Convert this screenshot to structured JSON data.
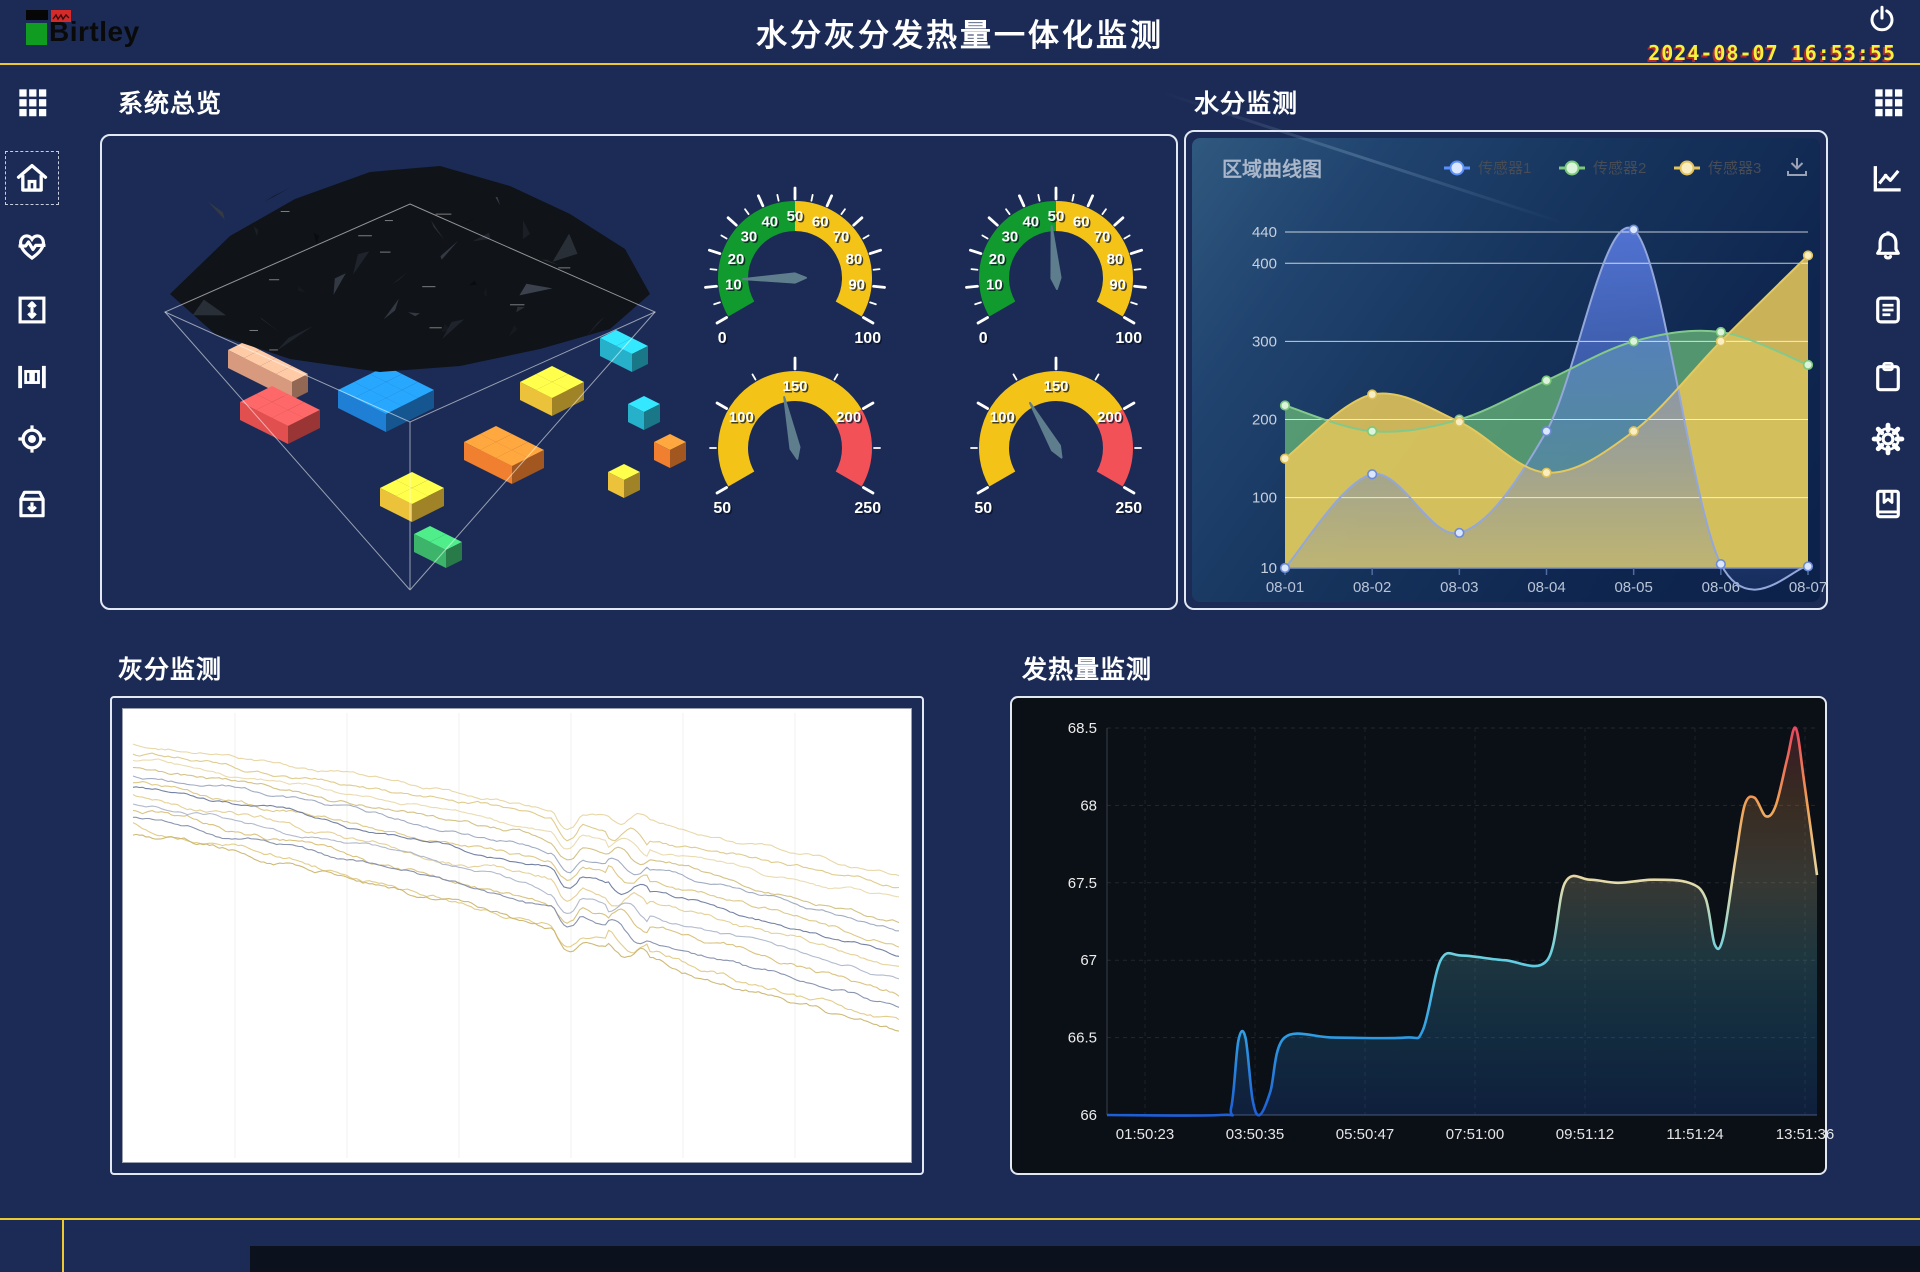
{
  "header": {
    "logo_text": "Birtley",
    "title": "水分灰分发热量一体化监测",
    "datetime": "2024-08-07 16:53:55"
  },
  "colors": {
    "background": "#1b2b55",
    "accent_line": "#ecc832",
    "panel_border": "#e2e8f1",
    "clock": "#f6f13c",
    "gauge_green": "#119b2e",
    "gauge_yellow": "#f4c317",
    "gauge_red": "#f15157",
    "series_blue": "#5b8ff9",
    "series_green": "#7cc87c",
    "series_yellow": "#e2c35c"
  },
  "left_sidebar": {
    "items": [
      {
        "icon": "grid"
      },
      {
        "icon": "home",
        "selected": true
      },
      {
        "icon": "heart-pulse"
      },
      {
        "icon": "vertical-range"
      },
      {
        "icon": "columns"
      },
      {
        "icon": "locate"
      },
      {
        "icon": "archive-download"
      }
    ]
  },
  "right_sidebar": {
    "items": [
      {
        "icon": "grid"
      },
      {
        "icon": "line-chart"
      },
      {
        "icon": "bell"
      },
      {
        "icon": "report"
      },
      {
        "icon": "clipboard"
      },
      {
        "icon": "gear"
      },
      {
        "icon": "bookmark"
      }
    ]
  },
  "sections": {
    "overview": "系统总览",
    "moisture": "水分监测",
    "ash": "灰分监测",
    "calorific": "发热量监测"
  },
  "chart_data": [
    {
      "type": "voxel-overview",
      "description": "3D coal pile with colored voxel blocks",
      "block_colors": [
        "#d89a7e",
        "#e14f4f",
        "#1f7fd4",
        "#f08030",
        "#ecc23a",
        "#27b0c9",
        "#3cb56a"
      ]
    },
    {
      "type": "gauge",
      "gauges": [
        {
          "min": 0,
          "max": 100,
          "value": 12,
          "major": 10,
          "minor": 5,
          "segments": [
            {
              "from": 0,
              "to": 50,
              "color": "#119b2e"
            },
            {
              "from": 50,
              "to": 100,
              "color": "#f4c317"
            }
          ]
        },
        {
          "min": 0,
          "max": 100,
          "value": 48,
          "major": 10,
          "minor": 5,
          "segments": [
            {
              "from": 0,
              "to": 50,
              "color": "#119b2e"
            },
            {
              "from": 50,
              "to": 100,
              "color": "#f4c317"
            }
          ]
        },
        {
          "min": 50,
          "max": 250,
          "value": 140,
          "major": 50,
          "minor": 25,
          "segments": [
            {
              "from": 50,
              "to": 200,
              "color": "#f4c317"
            },
            {
              "from": 200,
              "to": 250,
              "color": "#f15157"
            }
          ]
        },
        {
          "min": 50,
          "max": 250,
          "value": 125,
          "major": 50,
          "minor": 25,
          "segments": [
            {
              "from": 50,
              "to": 200,
              "color": "#f4c317"
            },
            {
              "from": 200,
              "to": 250,
              "color": "#f15157"
            }
          ]
        }
      ]
    },
    {
      "type": "area",
      "title": "区域曲线图",
      "legend_position": "top-right",
      "download_icon": "download-icon",
      "categories": [
        "08-01",
        "08-02",
        "08-03",
        "08-04",
        "08-05",
        "08-06",
        "08-07"
      ],
      "yticks": [
        10,
        100,
        200,
        300,
        400,
        440
      ],
      "ylim": [
        10,
        460
      ],
      "grid": true,
      "series": [
        {
          "name": "传感器1",
          "color": "#5b8ff9",
          "line": "#93a7da",
          "values": [
            10,
            130,
            55,
            185,
            443,
            15,
            12
          ]
        },
        {
          "name": "传感器2",
          "color": "#7cc87c",
          "line": "#83c98b",
          "values": [
            218,
            185,
            200,
            250,
            300,
            312,
            270
          ]
        },
        {
          "name": "传感器3",
          "color": "#e2c35c",
          "line": "#e3c85f",
          "values": [
            150,
            232,
            197,
            132,
            185,
            300,
            410
          ]
        }
      ]
    },
    {
      "type": "multiline-noise",
      "background": "#ffffff",
      "note": "dense noisy descending trend lines, values not labeled on screen",
      "lines": [
        {
          "color": "#e6d49e",
          "start": 22,
          "end": 150,
          "amp": 2.2
        },
        {
          "color": "#dcc782",
          "start": 30,
          "end": 165,
          "amp": 2.4
        },
        {
          "color": "#e8d8aa",
          "start": 38,
          "end": 178,
          "amp": 2.0
        },
        {
          "color": "#cfbd7a",
          "start": 46,
          "end": 192,
          "amp": 2.6
        },
        {
          "color": "#98a4bd",
          "start": 52,
          "end": 205,
          "amp": 2.2
        },
        {
          "color": "#d9c37c",
          "start": 60,
          "end": 220,
          "amp": 2.8
        },
        {
          "color": "#66749a",
          "start": 66,
          "end": 232,
          "amp": 2.0
        },
        {
          "color": "#e2cc8e",
          "start": 72,
          "end": 245,
          "amp": 3.0
        },
        {
          "color": "#aab3c6",
          "start": 80,
          "end": 258,
          "amp": 2.2
        },
        {
          "color": "#d6bd72",
          "start": 88,
          "end": 272,
          "amp": 3.2
        },
        {
          "color": "#7e89a6",
          "start": 95,
          "end": 285,
          "amp": 2.4
        },
        {
          "color": "#e0c87e",
          "start": 102,
          "end": 300,
          "amp": 3.4
        },
        {
          "color": "#c9b368",
          "start": 110,
          "end": 312,
          "amp": 3.0
        }
      ]
    },
    {
      "type": "step-line",
      "x_labels": [
        "01:50:23",
        "03:50:35",
        "05:50:47",
        "07:51:00",
        "09:51:12",
        "11:51:24",
        "13:51:36"
      ],
      "yticks": [
        66,
        66.5,
        67,
        67.5,
        68,
        68.5
      ],
      "ylim": [
        66,
        68.5
      ],
      "gradient_by_value": [
        "#1e5fd6",
        "#2e9ae2",
        "#63cfe2",
        "#e4dcaa",
        "#f0a254",
        "#e8485e"
      ],
      "points": [
        [
          0,
          66
        ],
        [
          0.16,
          66
        ],
        [
          0.175,
          66.05
        ],
        [
          0.185,
          66.48
        ],
        [
          0.195,
          66.5
        ],
        [
          0.205,
          66.1
        ],
        [
          0.215,
          66.0
        ],
        [
          0.23,
          66.15
        ],
        [
          0.25,
          66.5
        ],
        [
          0.32,
          66.5
        ],
        [
          0.42,
          66.5
        ],
        [
          0.445,
          66.55
        ],
        [
          0.47,
          67.0
        ],
        [
          0.5,
          67.03
        ],
        [
          0.56,
          67.0
        ],
        [
          0.62,
          67.0
        ],
        [
          0.645,
          67.5
        ],
        [
          0.68,
          67.52
        ],
        [
          0.72,
          67.5
        ],
        [
          0.77,
          67.52
        ],
        [
          0.82,
          67.5
        ],
        [
          0.843,
          67.4
        ],
        [
          0.856,
          67.1
        ],
        [
          0.868,
          67.15
        ],
        [
          0.885,
          67.65
        ],
        [
          0.898,
          68.0
        ],
        [
          0.912,
          68.05
        ],
        [
          0.928,
          67.93
        ],
        [
          0.942,
          68.0
        ],
        [
          0.958,
          68.3
        ],
        [
          0.97,
          68.5
        ],
        [
          0.982,
          68.15
        ],
        [
          1.0,
          67.55
        ]
      ]
    }
  ]
}
